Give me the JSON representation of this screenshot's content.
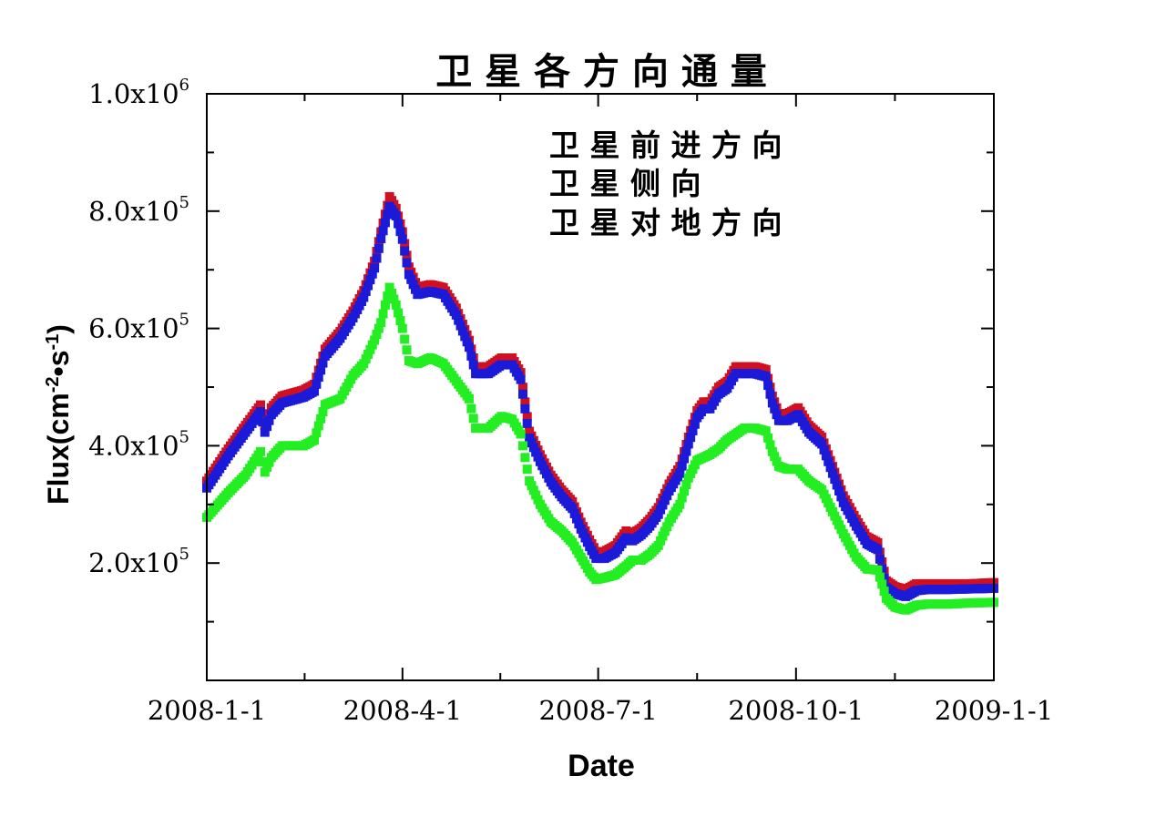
{
  "chart_data": {
    "type": "scatter",
    "title": "卫 星 各 方 向 通 量",
    "xlabel": "Date",
    "ylabel": "Flux(cm",
    "ylabel_exp1": "-2",
    "ylabel_mid": "•s",
    "ylabel_exp2": "-1",
    "ylabel_end": ")",
    "xlim": [
      0,
      366
    ],
    "ylim": [
      0,
      1000000
    ],
    "x_ticks": [
      {
        "x": 0,
        "label": "2008-1-1"
      },
      {
        "x": 91,
        "label": "2008-4-1"
      },
      {
        "x": 182,
        "label": "2008-7-1"
      },
      {
        "x": 274,
        "label": "2008-10-1"
      },
      {
        "x": 366,
        "label": "2009-1-1"
      }
    ],
    "y_ticks": [
      {
        "y": 200000,
        "mantissa": "2.0x10",
        "exp": "5"
      },
      {
        "y": 400000,
        "mantissa": "4.0x10",
        "exp": "5"
      },
      {
        "y": 600000,
        "mantissa": "6.0x10",
        "exp": "5"
      },
      {
        "y": 800000,
        "mantissa": "8.0x10",
        "exp": "5"
      },
      {
        "y": 1000000,
        "mantissa": "1.0x10",
        "exp": "6"
      }
    ],
    "legend_position": "top-right",
    "series": [
      {
        "name": "卫 星 前 进 方 向",
        "color": "#d01020",
        "points": [
          [
            0,
            335000
          ],
          [
            10,
            390000
          ],
          [
            18,
            430000
          ],
          [
            25,
            465000
          ],
          [
            27,
            430000
          ],
          [
            30,
            460000
          ],
          [
            35,
            480000
          ],
          [
            45,
            490000
          ],
          [
            50,
            500000
          ],
          [
            55,
            560000
          ],
          [
            62,
            590000
          ],
          [
            68,
            625000
          ],
          [
            73,
            660000
          ],
          [
            78,
            710000
          ],
          [
            81,
            760000
          ],
          [
            85,
            820000
          ],
          [
            88,
            800000
          ],
          [
            91,
            760000
          ],
          [
            94,
            700000
          ],
          [
            98,
            665000
          ],
          [
            104,
            670000
          ],
          [
            110,
            665000
          ],
          [
            116,
            630000
          ],
          [
            122,
            575000
          ],
          [
            125,
            530000
          ],
          [
            131,
            530000
          ],
          [
            137,
            545000
          ],
          [
            142,
            545000
          ],
          [
            146,
            520000
          ],
          [
            150,
            420000
          ],
          [
            155,
            380000
          ],
          [
            160,
            345000
          ],
          [
            165,
            320000
          ],
          [
            170,
            300000
          ],
          [
            174,
            265000
          ],
          [
            178,
            235000
          ],
          [
            181,
            215000
          ],
          [
            185,
            215000
          ],
          [
            190,
            225000
          ],
          [
            195,
            250000
          ],
          [
            198,
            245000
          ],
          [
            202,
            255000
          ],
          [
            206,
            270000
          ],
          [
            210,
            290000
          ],
          [
            215,
            330000
          ],
          [
            220,
            360000
          ],
          [
            224,
            410000
          ],
          [
            228,
            455000
          ],
          [
            231,
            470000
          ],
          [
            234,
            470000
          ],
          [
            238,
            495000
          ],
          [
            242,
            505000
          ],
          [
            246,
            530000
          ],
          [
            250,
            530000
          ],
          [
            255,
            530000
          ],
          [
            260,
            525000
          ],
          [
            263,
            480000
          ],
          [
            266,
            450000
          ],
          [
            270,
            450000
          ],
          [
            275,
            460000
          ],
          [
            280,
            430000
          ],
          [
            286,
            410000
          ],
          [
            290,
            370000
          ],
          [
            296,
            310000
          ],
          [
            302,
            270000
          ],
          [
            307,
            240000
          ],
          [
            312,
            230000
          ],
          [
            316,
            165000
          ],
          [
            320,
            155000
          ],
          [
            325,
            150000
          ],
          [
            330,
            160000
          ],
          [
            335,
            160000
          ],
          [
            345,
            160000
          ],
          [
            355,
            160000
          ],
          [
            366,
            162000
          ]
        ]
      },
      {
        "name": "卫 星 侧 向",
        "color": "#1a1ad8",
        "points": [
          [
            0,
            328000
          ],
          [
            10,
            383000
          ],
          [
            18,
            423000
          ],
          [
            25,
            458000
          ],
          [
            27,
            423000
          ],
          [
            30,
            453000
          ],
          [
            35,
            473000
          ],
          [
            45,
            483000
          ],
          [
            50,
            493000
          ],
          [
            55,
            553000
          ],
          [
            62,
            583000
          ],
          [
            68,
            618000
          ],
          [
            73,
            653000
          ],
          [
            78,
            703000
          ],
          [
            81,
            753000
          ],
          [
            85,
            808000
          ],
          [
            88,
            792000
          ],
          [
            91,
            752000
          ],
          [
            94,
            692000
          ],
          [
            98,
            658000
          ],
          [
            104,
            663000
          ],
          [
            110,
            658000
          ],
          [
            116,
            623000
          ],
          [
            122,
            568000
          ],
          [
            125,
            523000
          ],
          [
            131,
            523000
          ],
          [
            137,
            538000
          ],
          [
            142,
            538000
          ],
          [
            146,
            513000
          ],
          [
            150,
            413000
          ],
          [
            155,
            373000
          ],
          [
            160,
            338000
          ],
          [
            165,
            313000
          ],
          [
            170,
            293000
          ],
          [
            174,
            258000
          ],
          [
            178,
            228000
          ],
          [
            181,
            208000
          ],
          [
            185,
            208000
          ],
          [
            190,
            218000
          ],
          [
            195,
            243000
          ],
          [
            198,
            238000
          ],
          [
            202,
            248000
          ],
          [
            206,
            263000
          ],
          [
            210,
            283000
          ],
          [
            215,
            323000
          ],
          [
            220,
            353000
          ],
          [
            224,
            403000
          ],
          [
            228,
            448000
          ],
          [
            231,
            463000
          ],
          [
            234,
            463000
          ],
          [
            238,
            488000
          ],
          [
            242,
            498000
          ],
          [
            246,
            523000
          ],
          [
            250,
            523000
          ],
          [
            255,
            523000
          ],
          [
            260,
            518000
          ],
          [
            263,
            473000
          ],
          [
            266,
            443000
          ],
          [
            270,
            443000
          ],
          [
            275,
            453000
          ],
          [
            280,
            423000
          ],
          [
            286,
            403000
          ],
          [
            290,
            363000
          ],
          [
            296,
            303000
          ],
          [
            302,
            263000
          ],
          [
            307,
            233000
          ],
          [
            312,
            223000
          ],
          [
            316,
            158000
          ],
          [
            320,
            148000
          ],
          [
            325,
            143000
          ],
          [
            330,
            153000
          ],
          [
            335,
            155000
          ],
          [
            345,
            155000
          ],
          [
            355,
            156000
          ],
          [
            366,
            157000
          ]
        ]
      },
      {
        "name": "卫 星 对 地 方 向",
        "color": "#22ee22",
        "points": [
          [
            0,
            278000
          ],
          [
            10,
            320000
          ],
          [
            18,
            350000
          ],
          [
            25,
            390000
          ],
          [
            27,
            355000
          ],
          [
            30,
            380000
          ],
          [
            35,
            400000
          ],
          [
            45,
            400000
          ],
          [
            50,
            410000
          ],
          [
            55,
            470000
          ],
          [
            62,
            480000
          ],
          [
            68,
            520000
          ],
          [
            73,
            540000
          ],
          [
            78,
            580000
          ],
          [
            81,
            610000
          ],
          [
            85,
            670000
          ],
          [
            88,
            640000
          ],
          [
            91,
            600000
          ],
          [
            94,
            545000
          ],
          [
            98,
            540000
          ],
          [
            104,
            550000
          ],
          [
            110,
            540000
          ],
          [
            116,
            510000
          ],
          [
            122,
            480000
          ],
          [
            125,
            430000
          ],
          [
            131,
            430000
          ],
          [
            137,
            450000
          ],
          [
            142,
            445000
          ],
          [
            146,
            420000
          ],
          [
            150,
            340000
          ],
          [
            155,
            300000
          ],
          [
            160,
            270000
          ],
          [
            165,
            255000
          ],
          [
            170,
            235000
          ],
          [
            174,
            210000
          ],
          [
            178,
            185000
          ],
          [
            181,
            172000
          ],
          [
            185,
            175000
          ],
          [
            190,
            180000
          ],
          [
            195,
            195000
          ],
          [
            198,
            205000
          ],
          [
            202,
            205000
          ],
          [
            206,
            215000
          ],
          [
            210,
            230000
          ],
          [
            215,
            270000
          ],
          [
            220,
            300000
          ],
          [
            224,
            345000
          ],
          [
            228,
            375000
          ],
          [
            231,
            380000
          ],
          [
            234,
            385000
          ],
          [
            238,
            395000
          ],
          [
            242,
            410000
          ],
          [
            246,
            420000
          ],
          [
            250,
            430000
          ],
          [
            255,
            430000
          ],
          [
            260,
            425000
          ],
          [
            263,
            390000
          ],
          [
            266,
            365000
          ],
          [
            270,
            360000
          ],
          [
            275,
            360000
          ],
          [
            280,
            340000
          ],
          [
            286,
            325000
          ],
          [
            290,
            295000
          ],
          [
            296,
            250000
          ],
          [
            302,
            210000
          ],
          [
            307,
            190000
          ],
          [
            312,
            188000
          ],
          [
            316,
            140000
          ],
          [
            320,
            125000
          ],
          [
            325,
            120000
          ],
          [
            330,
            128000
          ],
          [
            335,
            130000
          ],
          [
            345,
            130000
          ],
          [
            355,
            132000
          ],
          [
            366,
            133000
          ]
        ]
      }
    ]
  }
}
